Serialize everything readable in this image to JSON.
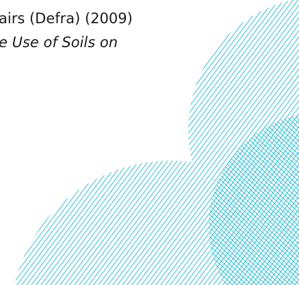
{
  "document": {
    "lines": [
      "airs (Defra) (2009)",
      "e Use of Soils on"
    ]
  }
}
